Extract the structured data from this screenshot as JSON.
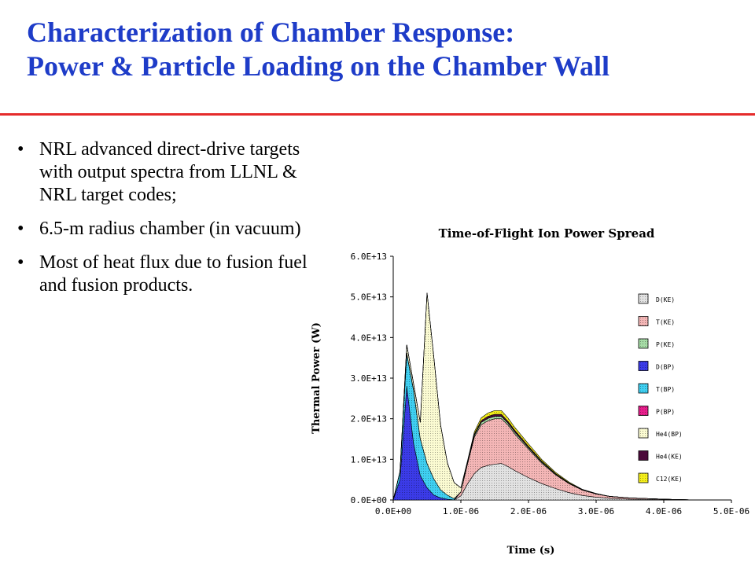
{
  "slide": {
    "title_line1": "Characterization of Chamber Response:",
    "title_line2": "Power & Particle Loading on the Chamber Wall",
    "bullets": [
      "NRL advanced direct-drive targets with output spectra from LLNL & NRL target codes;",
      "6.5-m radius chamber (in vacuum)",
      "Most of heat flux due to fusion fuel and fusion products."
    ]
  },
  "chart_data": {
    "type": "area",
    "stacked": true,
    "title": "Time-of-Flight Ion Power Spread",
    "xlabel": "Time (s)",
    "ylabel": "Thermal Power (W)",
    "xlim": [
      0,
      5e-06
    ],
    "ylim": [
      0,
      60000000000000.0
    ],
    "xticks": [
      0,
      1e-06,
      2e-06,
      3e-06,
      4e-06,
      5e-06
    ],
    "xtick_labels": [
      "0.0E+00",
      "1.0E-06",
      "2.0E-06",
      "3.0E-06",
      "4.0E-06",
      "5.0E-06"
    ],
    "yticks": [
      0,
      10000000000000.0,
      20000000000000.0,
      30000000000000.0,
      40000000000000.0,
      50000000000000.0,
      60000000000000.0
    ],
    "ytick_labels": [
      "0.0E+00",
      "1.0E+13",
      "2.0E+13",
      "3.0E+13",
      "4.0E+13",
      "5.0E+13",
      "6.0E+13"
    ],
    "legend_position": "right",
    "x": [
      0,
      1e-07,
      2e-07,
      3e-07,
      4e-07,
      5e-07,
      6e-07,
      7e-07,
      8e-07,
      9e-07,
      1e-06,
      1.1e-06,
      1.2e-06,
      1.3e-06,
      1.4e-06,
      1.5e-06,
      1.6e-06,
      1.7e-06,
      1.8e-06,
      2e-06,
      2.2e-06,
      2.4e-06,
      2.6e-06,
      2.8e-06,
      3e-06,
      3.2e-06,
      3.5e-06,
      4e-06,
      4.5e-06,
      5e-06
    ],
    "series": [
      {
        "name": "D(KE)",
        "color": "#e2e2e2",
        "pattern": "dots",
        "values": [
          0,
          0,
          0,
          0,
          0,
          0,
          0,
          0,
          0,
          0,
          1000000000000.0,
          4000000000000.0,
          6500000000000.0,
          8000000000000.0,
          8500000000000.0,
          8800000000000.0,
          9000000000000.0,
          8200000000000.0,
          7200000000000.0,
          5500000000000.0,
          4000000000000.0,
          2800000000000.0,
          1800000000000.0,
          1100000000000.0,
          700000000000.0,
          400000000000.0,
          200000000000.0,
          100000000000.0,
          0,
          0
        ]
      },
      {
        "name": "T(KE)",
        "color": "#f4b6b6",
        "pattern": "dots",
        "values": [
          0,
          0,
          0,
          0,
          0,
          0,
          0,
          0,
          0,
          0,
          1000000000000.0,
          5000000000000.0,
          9000000000000.0,
          10500000000000.0,
          11000000000000.0,
          11200000000000.0,
          11000000000000.0,
          10200000000000.0,
          9000000000000.0,
          7000000000000.0,
          5000000000000.0,
          3400000000000.0,
          2200000000000.0,
          1300000000000.0,
          800000000000.0,
          500000000000.0,
          300000000000.0,
          100000000000.0,
          0,
          0
        ]
      },
      {
        "name": "P(KE)",
        "color": "#a6dca6",
        "pattern": "dots",
        "values": [
          0,
          0,
          0,
          0,
          0,
          0,
          0,
          0,
          0,
          0,
          0,
          300000000000.0,
          500000000000.0,
          600000000000.0,
          600000000000.0,
          600000000000.0,
          600000000000.0,
          500000000000.0,
          500000000000.0,
          400000000000.0,
          300000000000.0,
          200000000000.0,
          100000000000.0,
          100000000000.0,
          0,
          0,
          0,
          0,
          0,
          0
        ]
      },
      {
        "name": "D(BP)",
        "color": "#3b3be8",
        "pattern": "dots",
        "values": [
          0,
          5000000000000.0,
          28000000000000.0,
          14000000000000.0,
          6000000000000.0,
          3000000000000.0,
          1200000000000.0,
          500000000000.0,
          200000000000.0,
          0,
          0,
          0,
          0,
          0,
          0,
          0,
          0,
          0,
          0,
          0,
          0,
          0,
          0,
          0,
          0,
          0,
          0,
          0,
          0,
          0
        ]
      },
      {
        "name": "T(BP)",
        "color": "#3fd0f2",
        "pattern": "dots",
        "values": [
          0,
          2000000000000.0,
          8000000000000.0,
          13000000000000.0,
          9000000000000.0,
          6000000000000.0,
          4000000000000.0,
          2000000000000.0,
          1000000000000.0,
          300000000000.0,
          0,
          0,
          0,
          0,
          0,
          0,
          0,
          0,
          0,
          0,
          0,
          0,
          0,
          0,
          0,
          0,
          0,
          0,
          0,
          0
        ]
      },
      {
        "name": "P(BP)",
        "color": "#e81e8c",
        "pattern": "dots",
        "values": [
          0,
          0,
          200000000000.0,
          200000000000.0,
          100000000000.0,
          0,
          0,
          0,
          0,
          0,
          0,
          0,
          0,
          0,
          0,
          0,
          0,
          0,
          0,
          0,
          0,
          0,
          0,
          0,
          0,
          0,
          0,
          0,
          0,
          0
        ]
      },
      {
        "name": "He4(BP)",
        "color": "#fbfbd2",
        "pattern": "dots",
        "values": [
          0,
          0,
          2000000000000.0,
          1500000000000.0,
          4000000000000.0,
          42000000000000.0,
          30000000000000.0,
          16000000000000.0,
          8000000000000.0,
          4000000000000.0,
          1000000000000.0,
          0,
          0,
          0,
          0,
          0,
          0,
          0,
          0,
          0,
          0,
          0,
          0,
          0,
          0,
          0,
          0,
          0,
          0,
          0
        ]
      },
      {
        "name": "He4(KE)",
        "color": "#4b0a3a",
        "pattern": "solid",
        "values": [
          0,
          0,
          0,
          0,
          0,
          0,
          0,
          0,
          0,
          0,
          0,
          200000000000.0,
          300000000000.0,
          400000000000.0,
          500000000000.0,
          500000000000.0,
          500000000000.0,
          400000000000.0,
          400000000000.0,
          300000000000.0,
          200000000000.0,
          100000000000.0,
          100000000000.0,
          0,
          0,
          0,
          0,
          0,
          0,
          0
        ]
      },
      {
        "name": "C12(KE)",
        "color": "#f5ef1a",
        "pattern": "dots",
        "values": [
          0,
          0,
          0,
          0,
          0,
          0,
          0,
          0,
          0,
          0,
          0,
          300000000000.0,
          500000000000.0,
          700000000000.0,
          800000000000.0,
          900000000000.0,
          900000000000.0,
          800000000000.0,
          700000000000.0,
          600000000000.0,
          400000000000.0,
          300000000000.0,
          200000000000.0,
          100000000000.0,
          100000000000.0,
          0,
          0,
          0,
          0,
          0
        ]
      }
    ]
  }
}
